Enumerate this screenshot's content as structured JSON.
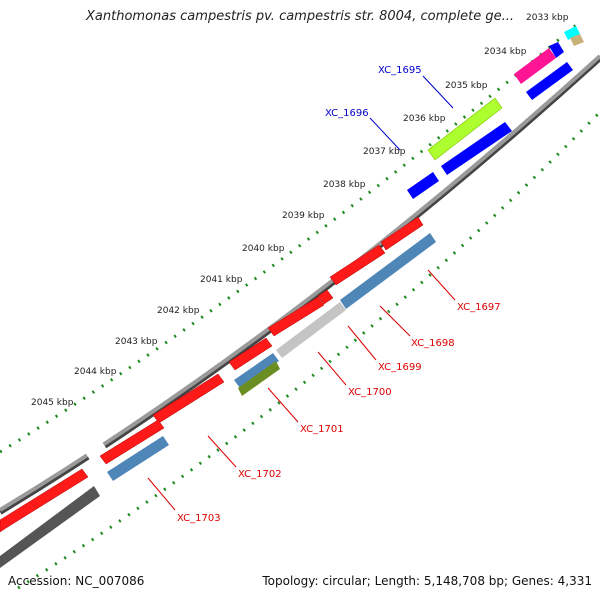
{
  "title": "Xanthomonas campestris pv. campestris str. 8004, complete ge...",
  "footer": {
    "accession": "Accession: NC_007086",
    "summary": "Topology: circular; Length: 5,148,708 bp; Genes: 4,331"
  },
  "colors": {
    "background": "#ffffff",
    "backbone": "#8a8a8a",
    "tick_dots": "#1f8a1f",
    "red_gene": "#ff1a1a",
    "blue_gene": "#0000ff",
    "steel_gene": "#4f86b8",
    "gray_gene": "#bdbdbd",
    "olive_gene": "#6b8e23",
    "lime_gene": "#adff2f",
    "pink_gene": "#ff1493",
    "cyan_gene": "#00ffff",
    "dark_gene": "#444444",
    "label_forward": "#0000cc",
    "label_reverse": "#dd0000"
  },
  "scale_labels": [
    "2033 kbp",
    "2034 kbp",
    "2035 kbp",
    "2036 kbp",
    "2037 kbp",
    "2038 kbp",
    "2039 kbp",
    "2040 kbp",
    "2041 kbp",
    "2042 kbp",
    "2043 kbp",
    "2044 kbp",
    "2045 kbp"
  ],
  "gene_labels": [
    "XC_1695",
    "XC_1696",
    "XC_1697",
    "XC_1698",
    "XC_1699",
    "XC_1700",
    "XC_1701",
    "XC_1702",
    "XC_1703"
  ]
}
